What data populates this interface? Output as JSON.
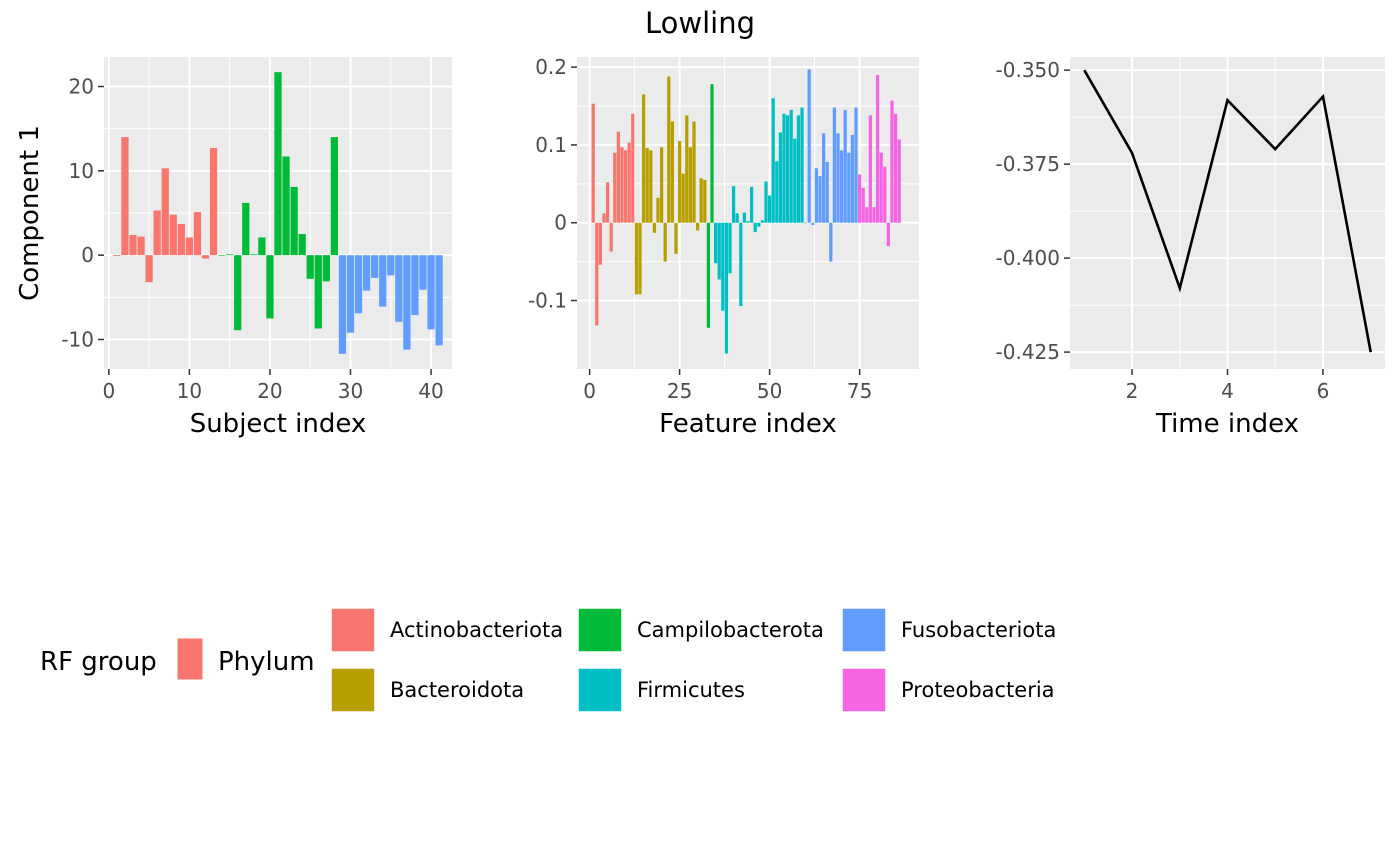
{
  "title": "Lowling",
  "colors": {
    "panel_bg": "#ebebeb",
    "grid": "#ffffff",
    "tick_text": "#4d4d4d",
    "line": "#000000",
    "rf_group": "#f8766d"
  },
  "legend": {
    "rf_group_title": "RF group",
    "phylum_title": "Phylum",
    "phyla": [
      {
        "name": "Actinobacteriota",
        "color": "#f8766d"
      },
      {
        "name": "Bacteroidota",
        "color": "#b79f00"
      },
      {
        "name": "Campilobacterota",
        "color": "#00ba38"
      },
      {
        "name": "Firmicutes",
        "color": "#00bfc4"
      },
      {
        "name": "Fusobacteriota",
        "color": "#619cff"
      },
      {
        "name": "Proteobacteria",
        "color": "#f564e3"
      }
    ]
  },
  "chart_data": [
    {
      "type": "bar",
      "id": "subject",
      "xlabel": "Subject index",
      "ylabel": "Component 1",
      "xlim": [
        -0.6,
        42.6
      ],
      "ylim": [
        -13.5,
        23.5
      ],
      "xticks": [
        0,
        10,
        20,
        30,
        40
      ],
      "yticks": [
        -10,
        0,
        10,
        20
      ],
      "series": [
        {
          "group": "Actinobacteriota",
          "x": [
            1,
            2,
            3,
            4,
            5,
            6,
            7,
            8,
            9,
            10,
            11,
            12,
            13
          ],
          "values": [
            -0.1,
            14,
            2.4,
            2.2,
            -3.2,
            5.3,
            10.3,
            4.8,
            3.7,
            2.1,
            5.1,
            -0.4,
            12.7
          ]
        },
        {
          "group": "Campilobacterota",
          "x": [
            14,
            15,
            16,
            17,
            18,
            19,
            20,
            21,
            22,
            23,
            24,
            25,
            26,
            27,
            28
          ],
          "values": [
            0,
            0.1,
            -8.9,
            6.2,
            0.1,
            2.1,
            -7.5,
            21.7,
            11.7,
            8.1,
            2.5,
            -2.8,
            -8.7,
            -3.1,
            14
          ]
        },
        {
          "group": "Fusobacteriota",
          "x": [
            29,
            30,
            31,
            32,
            33,
            34,
            35,
            36,
            37,
            38,
            39,
            40,
            41
          ],
          "values": [
            -11.7,
            -9.2,
            -6.9,
            -4.2,
            -2.7,
            -6.1,
            -2.4,
            -7.9,
            -11.2,
            -7.1,
            -4.1,
            -8.8,
            -10.7
          ]
        }
      ]
    },
    {
      "type": "bar",
      "id": "feature",
      "xlabel": "Feature index",
      "ylabel": "",
      "xlim": [
        -3.5,
        91.5
      ],
      "ylim": [
        -0.188,
        0.213
      ],
      "xticks": [
        0,
        25,
        50,
        75
      ],
      "yticks": [
        -0.1,
        0.0,
        0.1,
        0.2
      ],
      "series": [
        {
          "group": "Actinobacteriota",
          "x": [
            1,
            2,
            3,
            4,
            5,
            6,
            7,
            8,
            9,
            10,
            11,
            12
          ],
          "values": [
            0.153,
            -0.132,
            -0.054,
            0.012,
            0.052,
            -0.037,
            0.09,
            0.117,
            0.097,
            0.093,
            0.103,
            0.14
          ]
        },
        {
          "group": "Bacteroidota",
          "x": [
            13,
            14,
            15,
            16,
            17,
            18,
            19,
            20,
            21,
            22,
            23,
            24,
            25,
            26,
            27,
            28,
            29,
            30,
            31,
            32
          ],
          "values": [
            -0.092,
            -0.092,
            0.165,
            0.096,
            0.093,
            -0.013,
            0.032,
            0.097,
            -0.05,
            0.188,
            0.13,
            -0.04,
            0.105,
            0.063,
            0.138,
            0.097,
            0.13,
            -0.01,
            0.057,
            0.055
          ]
        },
        {
          "group": "Campilobacterota",
          "x": [
            33,
            34
          ],
          "values": [
            -0.135,
            0.178
          ]
        },
        {
          "group": "Firmicutes",
          "x": [
            35,
            36,
            37,
            38,
            39,
            40,
            41,
            42,
            43,
            44,
            45,
            46,
            47,
            48,
            49,
            50,
            51,
            52,
            53,
            54,
            55,
            56,
            57,
            58,
            59,
            60
          ],
          "values": [
            -0.052,
            -0.073,
            -0.113,
            -0.168,
            -0.065,
            0.047,
            0.012,
            -0.107,
            0.013,
            0.002,
            0.046,
            -0.012,
            -0.005,
            0.003,
            0.053,
            0.035,
            0.16,
            0.079,
            0.116,
            0.14,
            0.138,
            0.145,
            0.108,
            0.138,
            0.148,
            0.0
          ]
        },
        {
          "group": "Fusobacteriota",
          "x": [
            61,
            62,
            63,
            64,
            65,
            66,
            67,
            68,
            69,
            70,
            71,
            72,
            73,
            74
          ],
          "values": [
            0.197,
            -0.003,
            0.07,
            0.06,
            0.115,
            0.078,
            -0.05,
            0.148,
            0.115,
            0.093,
            0.145,
            0.09,
            0.113,
            0.148
          ]
        },
        {
          "group": "Proteobacteria",
          "x": [
            75,
            76,
            77,
            78,
            79,
            80,
            81,
            82,
            83,
            84,
            85,
            86
          ],
          "values": [
            0.062,
            0.045,
            0.02,
            0.138,
            0.02,
            0.19,
            0.09,
            0.072,
            -0.03,
            0.157,
            0.14,
            0.107
          ]
        }
      ]
    },
    {
      "type": "line",
      "id": "time",
      "xlabel": "Time index",
      "ylabel": "",
      "xlim": [
        0.7,
        7.3
      ],
      "ylim": [
        -0.4295,
        -0.3465
      ],
      "xticks": [
        2,
        4,
        6
      ],
      "yticks": [
        -0.35,
        -0.375,
        -0.4,
        -0.425
      ],
      "ytick_labels": [
        "-0.350",
        "-0.375",
        "-0.400",
        "-0.425"
      ],
      "x": [
        1,
        2,
        3,
        4,
        5,
        6,
        7
      ],
      "y": [
        -0.35,
        -0.372,
        -0.408,
        -0.358,
        -0.371,
        -0.357,
        -0.425
      ]
    }
  ]
}
